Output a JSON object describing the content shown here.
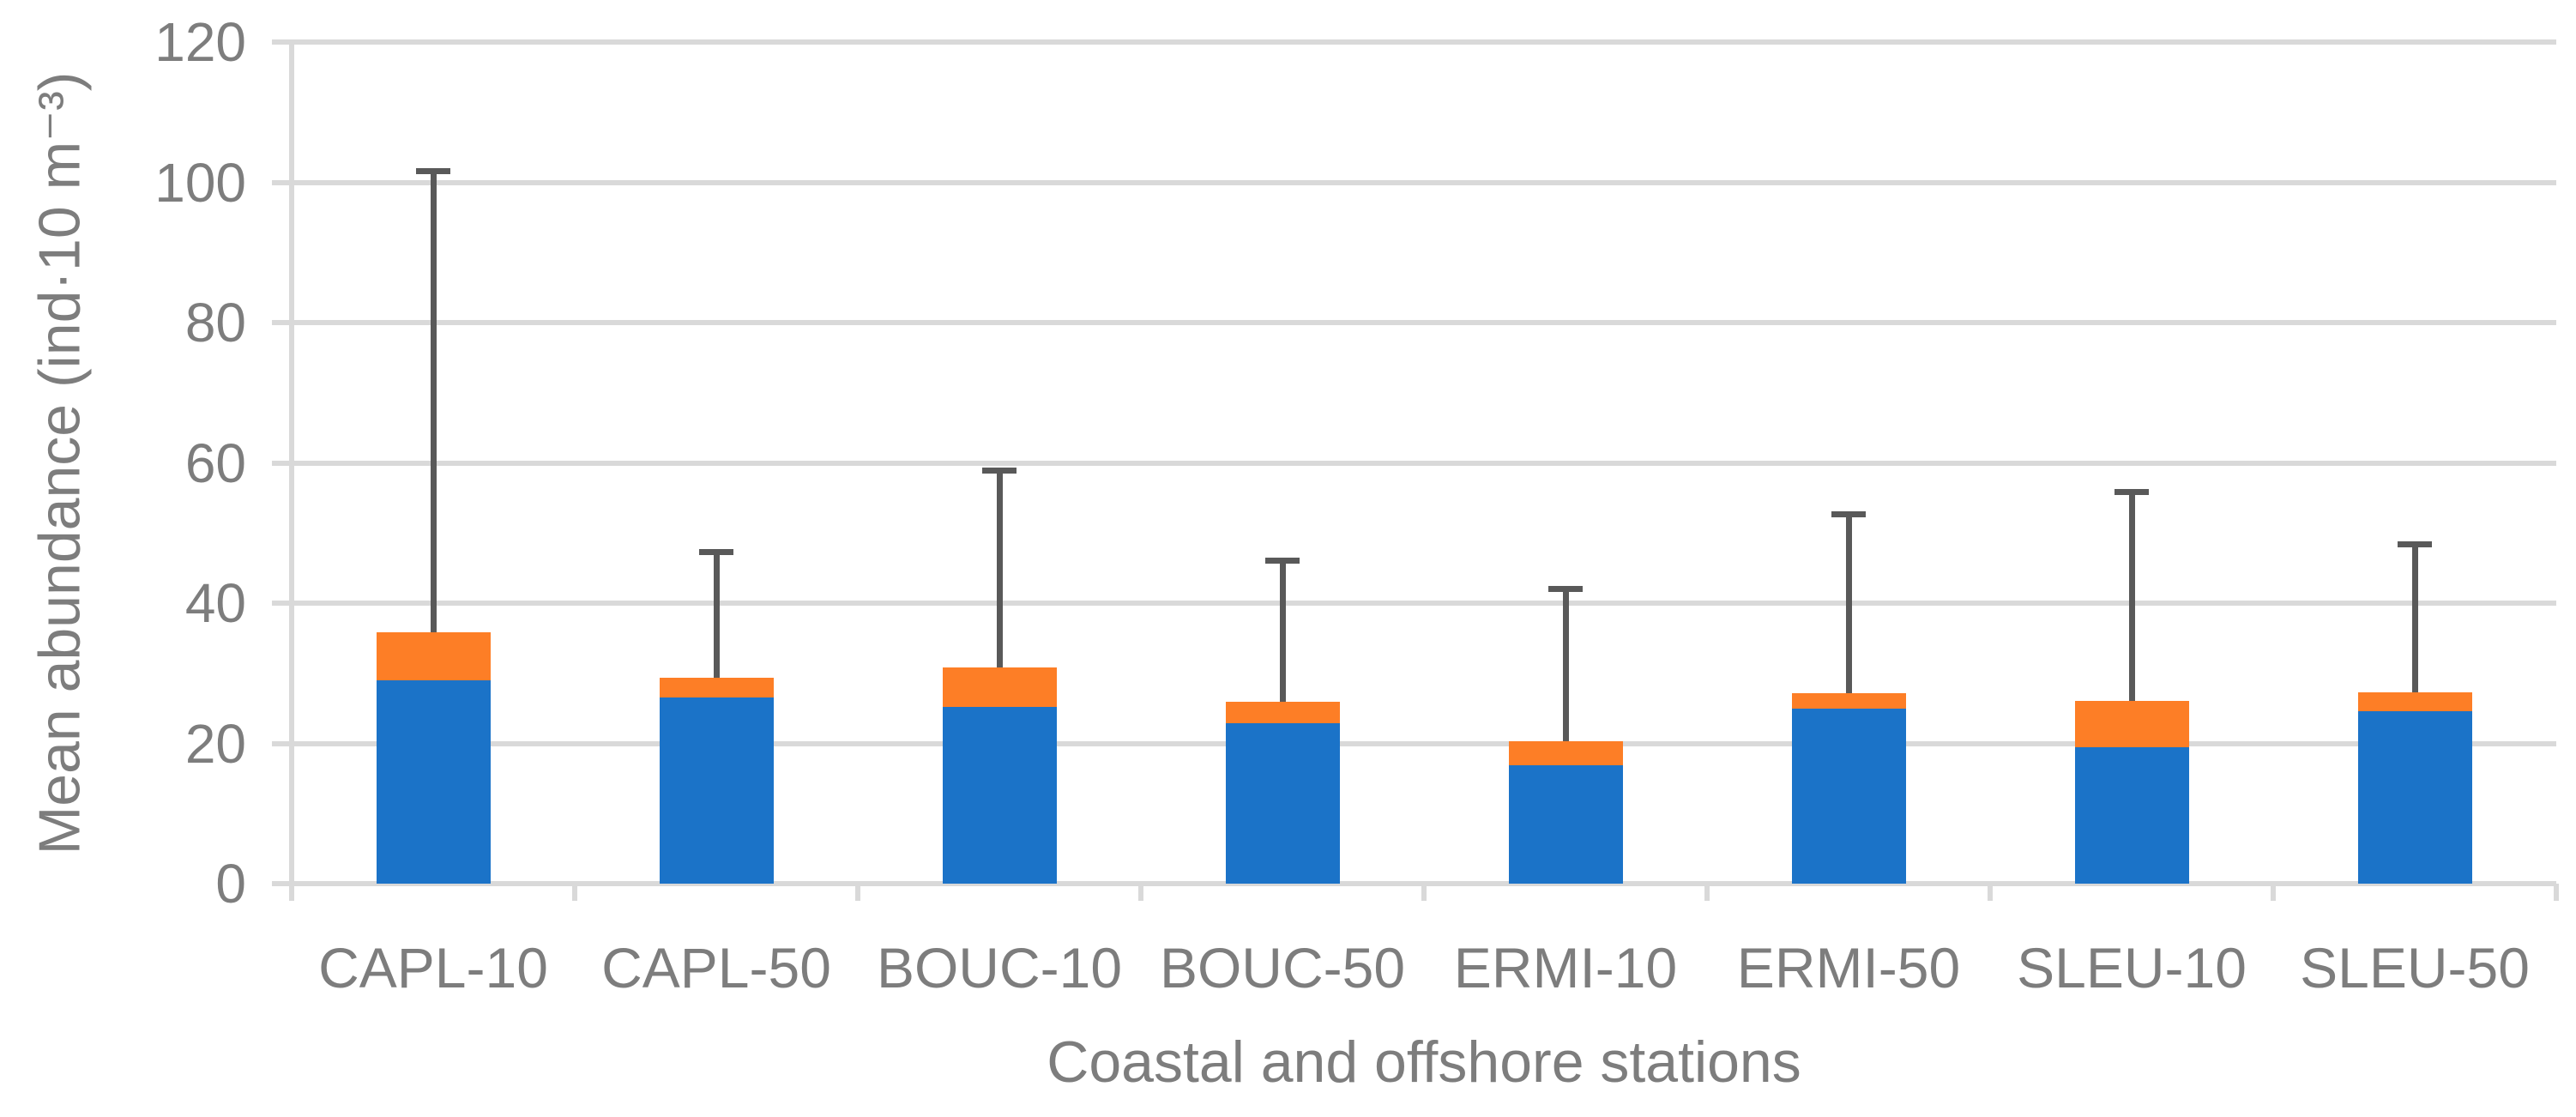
{
  "chart_data": {
    "type": "bar",
    "stacked": true,
    "xlabel": "Coastal and offshore stations",
    "ylabel": "Mean abundance (ind·10 m⁻³)",
    "categories": [
      "CAPL-10",
      "CAPL-50",
      "BOUC-10",
      "BOUC-50",
      "ERMI-10",
      "ERMI-50",
      "SLEU-10",
      "SLEU-50"
    ],
    "series": [
      {
        "name": "blue-bottom-segment",
        "color": "#1B73C8",
        "values": [
          29.0,
          26.6,
          25.2,
          22.9,
          16.9,
          24.9,
          19.4,
          24.6
        ]
      },
      {
        "name": "orange-top-segment",
        "color": "#FD7E26",
        "values": [
          6.8,
          2.8,
          5.6,
          3.0,
          3.4,
          2.2,
          6.7,
          2.7
        ]
      }
    ],
    "stack_totals": [
      35.8,
      29.4,
      30.8,
      25.9,
      20.3,
      27.1,
      26.1,
      27.3
    ],
    "error_bar_tops": [
      101.6,
      47.3,
      58.9,
      46.1,
      42.0,
      52.7,
      55.8,
      48.4
    ],
    "yticks": [
      0,
      20,
      40,
      60,
      80,
      100,
      120
    ],
    "ylim": [
      0,
      120
    ],
    "grid": true,
    "legend": false,
    "colors": {
      "gridline": "#D9D9D9",
      "axis_line": "#D9D9D9",
      "error_bar": "#595959",
      "label_text": "#7D7D7D"
    }
  }
}
